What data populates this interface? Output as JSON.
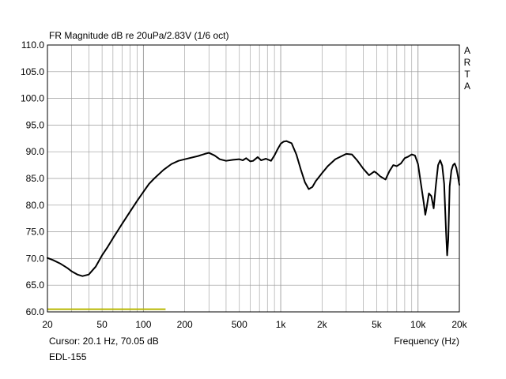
{
  "chart_data": {
    "type": "line",
    "title": "FR Magnitude dB re 20uPa/2.83V (1/6 oct)",
    "brand_letters": [
      "A",
      "R",
      "T",
      "A"
    ],
    "xlabel": "Frequency (Hz)",
    "ylabel": "",
    "x_scale": "log",
    "xlim": [
      20,
      20000
    ],
    "ylim": [
      60,
      110
    ],
    "grid": true,
    "y_ticks": [
      60,
      65,
      70,
      75,
      80,
      85,
      90,
      95,
      100,
      105,
      110
    ],
    "y_tick_labels": [
      "60.0",
      "65.0",
      "70.0",
      "75.0",
      "80.0",
      "85.0",
      "90.0",
      "95.0",
      "100.0",
      "105.0",
      "110.0"
    ],
    "x_ticks": [
      20,
      50,
      100,
      200,
      500,
      1000,
      2000,
      5000,
      10000,
      20000
    ],
    "x_tick_labels": [
      "20",
      "50",
      "100",
      "200",
      "500",
      "1k",
      "2k",
      "5k",
      "10k",
      "20k"
    ],
    "cursor_text": "Cursor: 20.1 Hz, 70.05 dB",
    "footer_label": "EDL-155",
    "colors": {
      "curve": "#000000",
      "grid": "#9a9a9a",
      "cursor_bar": "#b8b800"
    },
    "cursor_bar": {
      "x": [
        20,
        145
      ],
      "y": 60.5
    },
    "series": [
      {
        "x": [
          20,
          22,
          25,
          28,
          30,
          33,
          36,
          40,
          45,
          50,
          55,
          60,
          65,
          70,
          80,
          90,
          100,
          110,
          120,
          140,
          160,
          180,
          200,
          250,
          280,
          300,
          330,
          360,
          400,
          450,
          500,
          530,
          560,
          600,
          630,
          680,
          720,
          780,
          850,
          900,
          950,
          1000,
          1050,
          1100,
          1200,
          1300,
          1400,
          1500,
          1600,
          1700,
          1800,
          2000,
          2200,
          2500,
          3000,
          3300,
          3600,
          4000,
          4400,
          4800,
          5000,
          5300,
          5800,
          6200,
          6600,
          7000,
          7500,
          8000,
          8500,
          9000,
          9500,
          10000,
          10500,
          11000,
          11300,
          11600,
          12000,
          12500,
          13000,
          13500,
          14000,
          14500,
          15000,
          15500,
          16000,
          16300,
          16600,
          17000,
          17500,
          18000,
          18500,
          19000,
          19500,
          20000
        ],
        "y": [
          70.1,
          69.7,
          69.0,
          68.2,
          67.6,
          67.0,
          66.7,
          67.0,
          68.5,
          70.6,
          72.2,
          73.8,
          75.2,
          76.5,
          78.8,
          80.8,
          82.5,
          84.0,
          85.0,
          86.6,
          87.7,
          88.3,
          88.6,
          89.2,
          89.6,
          89.8,
          89.3,
          88.6,
          88.3,
          88.5,
          88.6,
          88.4,
          88.8,
          88.2,
          88.3,
          89.0,
          88.4,
          88.7,
          88.3,
          89.3,
          90.5,
          91.5,
          91.9,
          92.0,
          91.6,
          89.5,
          86.7,
          84.3,
          83.0,
          83.4,
          84.5,
          86.0,
          87.3,
          88.6,
          89.6,
          89.5,
          88.4,
          86.8,
          85.6,
          86.3,
          86.0,
          85.4,
          84.8,
          86.4,
          87.5,
          87.3,
          87.8,
          88.8,
          89.1,
          89.5,
          89.3,
          87.7,
          84.0,
          80.5,
          78.2,
          79.8,
          82.2,
          81.7,
          79.4,
          83.8,
          87.5,
          88.4,
          87.4,
          84.0,
          75.0,
          70.6,
          73.5,
          83.5,
          86.5,
          87.5,
          87.8,
          87.0,
          85.5,
          83.8
        ]
      }
    ]
  }
}
